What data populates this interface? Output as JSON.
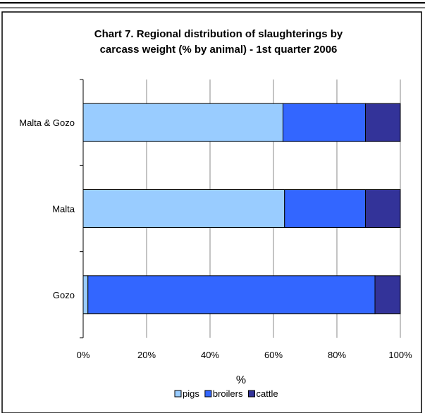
{
  "chart_data": {
    "type": "bar",
    "orientation": "horizontal",
    "stacked": "percent",
    "title_lines": [
      "Chart 7. Regional distribution of slaughterings by",
      "carcass weight (% by animal) - 1st quarter 2006"
    ],
    "xlabel": "%",
    "ylabel": "",
    "categories": [
      "Malta & Gozo",
      "Malta",
      "Gozo"
    ],
    "series": [
      {
        "name": "pigs",
        "values": [
          63,
          63.5,
          1.5
        ],
        "color": "#99ccff"
      },
      {
        "name": "broilers",
        "values": [
          26,
          25.5,
          90.5
        ],
        "color": "#3366ff"
      },
      {
        "name": "cattle",
        "values": [
          11,
          11,
          8
        ],
        "color": "#333399"
      }
    ],
    "xlim": [
      0,
      100
    ],
    "xticks": [
      "0%",
      "20%",
      "40%",
      "60%",
      "80%",
      "100%"
    ],
    "grid": "vertical",
    "legend": "bottom"
  }
}
